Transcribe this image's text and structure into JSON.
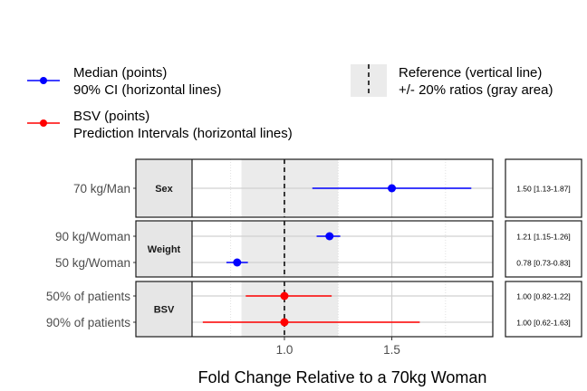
{
  "legend": {
    "median": {
      "line1": "Median (points)",
      "line2": "90% CI (horizontal lines)",
      "color": "#0000ff"
    },
    "bsv": {
      "line1": "BSV (points)",
      "line2": "Prediction Intervals (horizontal lines)",
      "color": "#ff0000"
    },
    "reference": {
      "line1": "Reference (vertical line)",
      "line2": "+/- 20% ratios (gray area)"
    }
  },
  "chart_data": {
    "type": "forest",
    "xlabel": "Fold Change Relative to a 70kg Woman",
    "xlim": [
      0.57,
      1.97
    ],
    "xticks": [
      1.0,
      1.5
    ],
    "xtick_labels": [
      "1.0",
      "1.5"
    ],
    "reference_line": 1.0,
    "reference_band": [
      0.8,
      1.25
    ],
    "colors": {
      "median": "#0000ff",
      "bsv": "#ff0000",
      "band": "#ebebeb"
    },
    "panels": [
      {
        "strip": "Sex",
        "rows": [
          {
            "label": "70 kg/Man",
            "type": "median",
            "value": 1.5,
            "low": 1.13,
            "high": 1.87,
            "text": "1.50 [1.13-1.87]"
          }
        ]
      },
      {
        "strip": "Weight",
        "rows": [
          {
            "label": "90 kg/Woman",
            "type": "median",
            "value": 1.21,
            "low": 1.15,
            "high": 1.26,
            "text": "1.21 [1.15-1.26]"
          },
          {
            "label": "50 kg/Woman",
            "type": "median",
            "value": 0.78,
            "low": 0.73,
            "high": 0.83,
            "text": "0.78 [0.73-0.83]"
          }
        ]
      },
      {
        "strip": "BSV",
        "rows": [
          {
            "label": "50% of patients",
            "type": "bsv",
            "value": 1.0,
            "low": 0.82,
            "high": 1.22,
            "text": "1.00 [0.82-1.22]"
          },
          {
            "label": "90% of patients",
            "type": "bsv",
            "value": 1.0,
            "low": 0.62,
            "high": 1.63,
            "text": "1.00 [0.62-1.63]"
          }
        ]
      }
    ]
  }
}
